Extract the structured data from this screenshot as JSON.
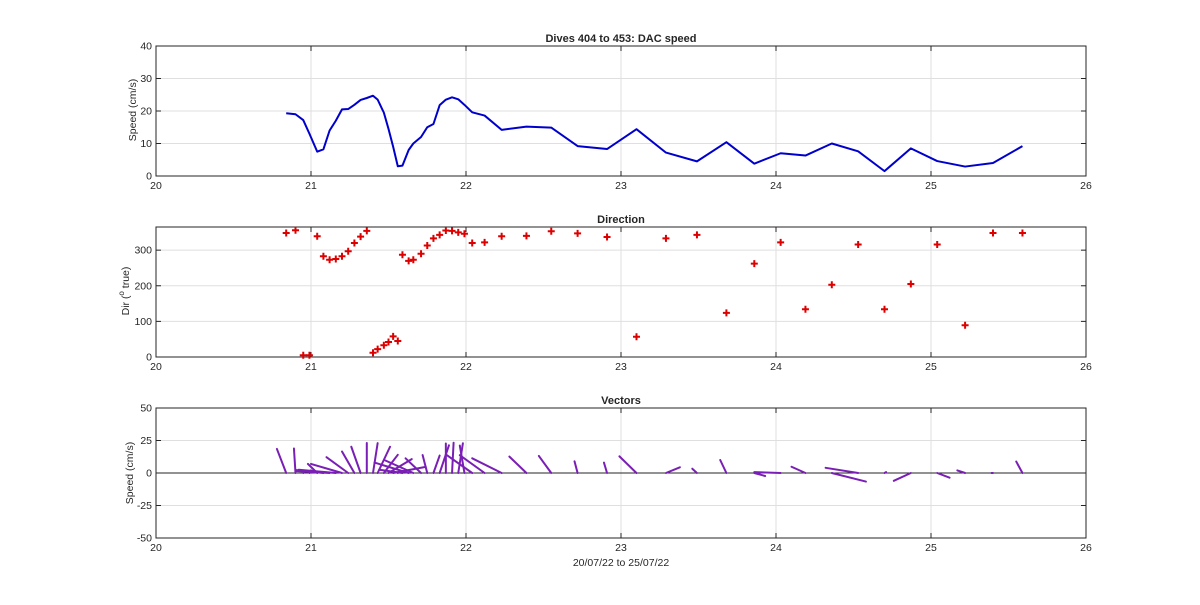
{
  "figure": {
    "xlabel": "20/07/22 to 25/07/22"
  },
  "colors": {
    "speed_line": "#0000cc",
    "direction_marker": "#dd0000",
    "vectors": "#7a1fb5",
    "zero_line": "#262626"
  },
  "chart_data": [
    {
      "type": "line",
      "title": "Dives 404 to 453: DAC speed",
      "ylabel": "Speed (cm/s)",
      "xlim": [
        20,
        26
      ],
      "ylim": [
        0,
        40
      ],
      "xticks": [
        20,
        21,
        22,
        23,
        24,
        25,
        26
      ],
      "yticks": [
        0,
        10,
        20,
        30,
        40
      ],
      "grid": true,
      "series": [
        {
          "x": [
            20.84,
            20.9,
            20.95,
            20.99,
            21.04,
            21.08,
            21.12,
            21.16,
            21.2,
            21.24,
            21.28,
            21.32,
            21.36,
            21.4,
            21.43,
            21.47,
            21.5,
            21.53,
            21.56,
            21.59,
            21.63,
            21.66,
            21.71,
            21.75,
            21.79,
            21.83,
            21.87,
            21.91,
            21.95,
            21.99,
            22.04,
            22.12,
            22.23,
            22.39,
            22.55,
            22.72,
            22.91,
            23.1,
            23.29,
            23.49,
            23.68,
            23.86,
            24.03,
            24.19,
            24.36,
            24.53,
            24.7,
            24.87,
            25.04,
            25.22,
            25.4,
            25.59
          ],
          "y": [
            19.3,
            19.0,
            17.2,
            13.0,
            7.5,
            8.2,
            14.0,
            17.0,
            20.5,
            20.6,
            21.9,
            23.4,
            24.0,
            24.7,
            23.5,
            19.5,
            14.5,
            9.0,
            3.0,
            3.2,
            8.0,
            10.0,
            12.0,
            15.0,
            16.0,
            21.8,
            23.5,
            24.2,
            23.6,
            21.9,
            19.6,
            18.6,
            14.2,
            15.2,
            14.9,
            9.2,
            8.3,
            14.4,
            7.2,
            4.5,
            10.4,
            3.8,
            7.0,
            6.3,
            10.0,
            7.6,
            1.5,
            8.5,
            4.6,
            2.9,
            4.0,
            9.2
          ]
        }
      ]
    },
    {
      "type": "scatter",
      "title": "Direction",
      "ylabel": "Dir (° true)",
      "ylabel_parts": [
        "Dir (",
        "o",
        " true)"
      ],
      "xlim": [
        20,
        26
      ],
      "ylim": [
        0,
        365
      ],
      "xticks": [
        20,
        21,
        22,
        23,
        24,
        25,
        26
      ],
      "yticks": [
        0,
        100,
        200,
        300
      ],
      "grid": true,
      "series": [
        {
          "marker": "+",
          "x": [
            20.84,
            20.9,
            20.95,
            20.99,
            21.04,
            21.08,
            21.12,
            21.16,
            21.2,
            21.24,
            21.28,
            21.32,
            21.36,
            21.4,
            21.43,
            21.47,
            21.5,
            21.53,
            21.56,
            21.59,
            21.63,
            21.66,
            21.71,
            21.75,
            21.79,
            21.83,
            21.87,
            21.91,
            21.95,
            21.99,
            22.04,
            22.12,
            22.23,
            22.39,
            22.55,
            22.72,
            22.91,
            23.1,
            23.29,
            23.49,
            23.68,
            23.86,
            24.03,
            24.19,
            24.36,
            24.53,
            24.7,
            24.87,
            25.04,
            25.22,
            25.4,
            25.59
          ],
          "y": [
            348,
            356,
            5,
            5,
            339,
            283,
            273,
            275,
            283,
            297,
            320,
            338,
            354,
            12,
            22,
            33,
            42,
            58,
            45,
            287,
            270,
            273,
            290,
            313,
            333,
            343,
            355,
            354,
            350,
            346,
            320,
            322,
            339,
            340,
            353,
            347,
            337,
            57,
            333,
            343,
            124,
            262,
            322,
            134,
            203,
            316,
            134,
            205,
            316,
            89,
            348,
            348
          ]
        }
      ]
    },
    {
      "type": "vector",
      "title": "Vectors",
      "ylabel": "Speed (cm/s)",
      "xlim": [
        20,
        26
      ],
      "ylim": [
        -50,
        50
      ],
      "xticks": [
        20,
        21,
        22,
        23,
        24,
        25,
        26
      ],
      "yticks": [
        -50,
        -25,
        0,
        25,
        50
      ],
      "grid": true,
      "note_units": "vector tips in (days east, cm/s north)",
      "origins": [
        20.84,
        20.9,
        20.95,
        20.99,
        21.04,
        21.08,
        21.12,
        21.16,
        21.2,
        21.24,
        21.28,
        21.32,
        21.36,
        21.4,
        21.43,
        21.47,
        21.5,
        21.53,
        21.56,
        21.59,
        21.63,
        21.66,
        21.71,
        21.75,
        21.79,
        21.83,
        21.87,
        21.91,
        21.95,
        21.99,
        22.04,
        22.12,
        22.23,
        22.39,
        22.55,
        22.72,
        22.91,
        23.1,
        23.29,
        23.49,
        23.68,
        23.86,
        24.03,
        24.19,
        24.36,
        24.53,
        24.7,
        24.87,
        25.04,
        25.22,
        25.4,
        25.59
      ],
      "tips_x": [
        20.78,
        20.89,
        20.96,
        21.0,
        20.98,
        20.9,
        20.9,
        20.92,
        21.0,
        21.1,
        21.2,
        21.26,
        21.36,
        21.43,
        21.51,
        21.56,
        21.65,
        21.74,
        21.59,
        21.44,
        21.41,
        21.48,
        21.61,
        21.72,
        21.83,
        21.89,
        21.87,
        21.92,
        21.98,
        21.96,
        21.87,
        21.96,
        22.04,
        22.28,
        22.47,
        22.7,
        22.89,
        22.99,
        23.38,
        23.46,
        23.64,
        23.93,
        23.86,
        24.1,
        24.58,
        24.32,
        24.71,
        24.76,
        25.12,
        25.17,
        25.39,
        25.55
      ],
      "tips_y": [
        18.5,
        18.8,
        1.5,
        2.0,
        7.0,
        2.3,
        1.5,
        2.5,
        7.0,
        12.2,
        16.5,
        20.2,
        23.1,
        23.0,
        20.2,
        14.0,
        10.7,
        4.7,
        1.5,
        2.5,
        8.0,
        9.6,
        11.3,
        13.8,
        13.4,
        21.3,
        22.7,
        23.3,
        22.9,
        21.1,
        14.3,
        13.7,
        11.3,
        12.6,
        13.1,
        9.0,
        8.0,
        12.8,
        4.4,
        3.3,
        10.0,
        -2.3,
        0.7,
        4.8,
        -6.6,
        4.0,
        0.7,
        -6.0,
        -3.6,
        2.0,
        0.0,
        8.8
      ]
    }
  ]
}
